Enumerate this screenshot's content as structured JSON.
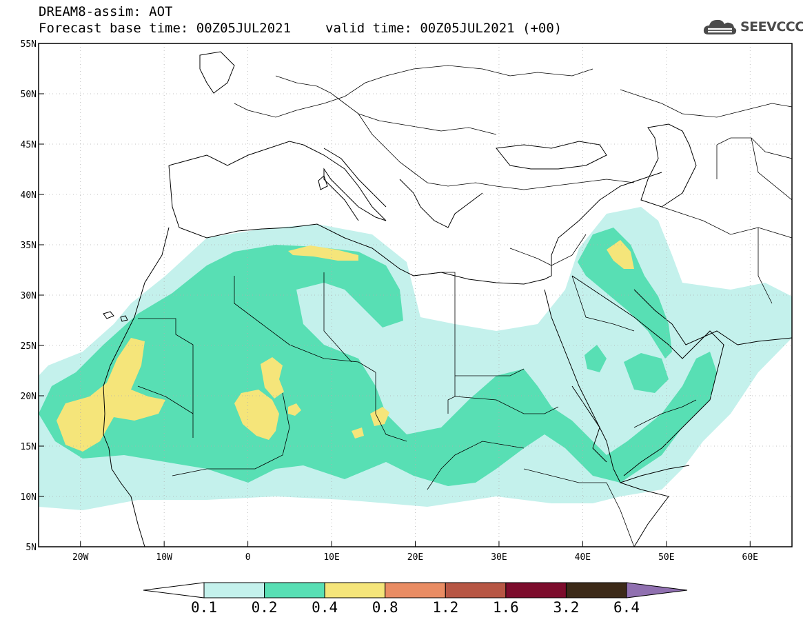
{
  "header": {
    "title": "DREAM8-assim: AOT",
    "base_time": "Forecast base time: 00Z05JUL2021",
    "valid_time": "valid time: 00Z05JUL2021 (+00)"
  },
  "logo": {
    "text": "SEEVCCC",
    "icon": "cloud-icon",
    "color": "#4a4a4a"
  },
  "map": {
    "lon_range": [
      -25,
      65
    ],
    "lat_range": [
      5,
      55
    ],
    "lat_ticks": [
      "55N",
      "50N",
      "45N",
      "40N",
      "35N",
      "30N",
      "25N",
      "20N",
      "15N",
      "10N",
      "5N"
    ],
    "lon_ticks": [
      "20W",
      "10W",
      "0",
      "10E",
      "20E",
      "30E",
      "40E",
      "50E",
      "60E"
    ]
  },
  "colorbar": {
    "levels": [
      "0.1",
      "0.2",
      "0.4",
      "0.8",
      "1.2",
      "1.6",
      "3.2",
      "6.4"
    ],
    "colors": [
      "#c4f1ec",
      "#58dfb4",
      "#f5e57a",
      "#e98c63",
      "#b75644",
      "#7c0c2c",
      "#3c2a18"
    ],
    "under_color": "#ffffff",
    "over_color": "#9070b0"
  }
}
